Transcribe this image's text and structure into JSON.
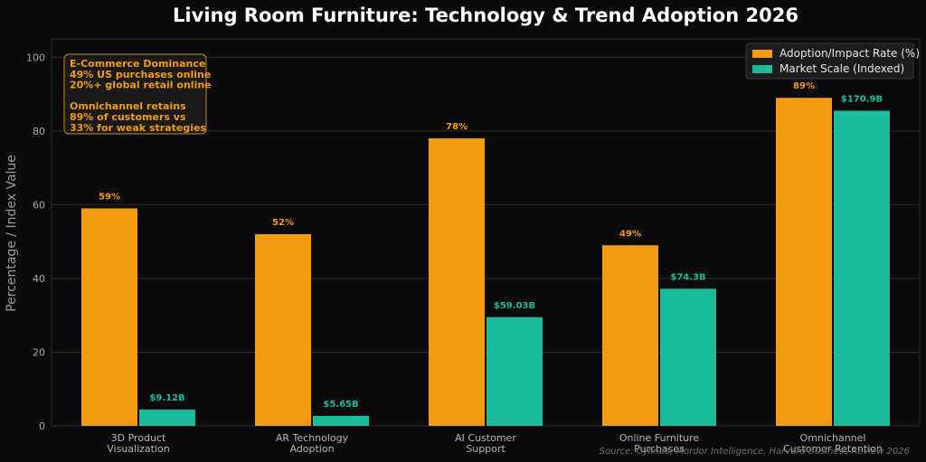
{
  "chart_data": {
    "type": "bar",
    "title": "Living Room Furniture: Technology & Trend Adoption 2026",
    "ylabel": "Percentage / Index Value",
    "xlabel": "",
    "ylim": [
      0,
      105
    ],
    "yticks": [
      0,
      20,
      40,
      60,
      80,
      100
    ],
    "grid": true,
    "legend_position": "top-right",
    "categories": [
      [
        "3D Product",
        "Visualization"
      ],
      [
        "AR Technology",
        "Adoption"
      ],
      [
        "AI Customer",
        "Support"
      ],
      [
        "Online Furniture",
        "Purchases"
      ],
      [
        "Omnichannel",
        "Customer Retention"
      ]
    ],
    "series": [
      {
        "name": "Adoption/Impact Rate (%)",
        "color": "#f39c12",
        "values": [
          59,
          52,
          78,
          49,
          89
        ],
        "labels": [
          "59%",
          "52%",
          "78%",
          "49%",
          "89%"
        ]
      },
      {
        "name": "Market Scale (Indexed)",
        "color": "#1abc9c",
        "values": [
          4.4,
          2.7,
          29.5,
          37.2,
          85.5
        ],
        "labels": [
          "$9.12B",
          "$5.65B",
          "$59.03B",
          "$74.3B",
          "$170.9B"
        ]
      }
    ],
    "annotation": [
      "E-Commerce Dominance",
      "49% US purchases online",
      "20%+ global retail online",
      "",
      "Omnichannel retains",
      "89% of customers vs",
      "33% for weak strategies"
    ],
    "source": "Source: Cylindo, Mordor Intelligence, Harvard Business Review 2026"
  }
}
